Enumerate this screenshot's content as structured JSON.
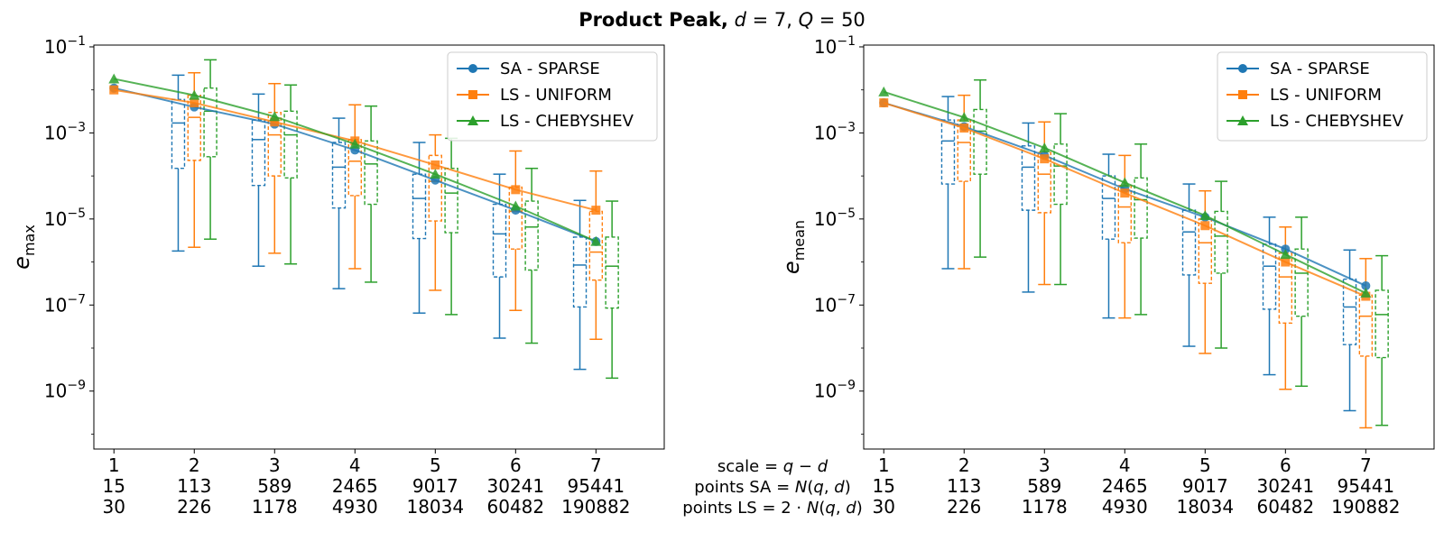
{
  "figure": {
    "title_bold": "Product Peak,",
    "title_rest_parts": [
      {
        "t": " ",
        "i": false
      },
      {
        "t": "d",
        "i": true
      },
      {
        "t": " = 7, ",
        "i": false
      },
      {
        "t": "Q",
        "i": true
      },
      {
        "t": " = 50",
        "i": false
      }
    ],
    "center_labels": [
      [
        {
          "t": "scale = ",
          "i": false
        },
        {
          "t": "q",
          "i": true
        },
        {
          "t": " − ",
          "i": false
        },
        {
          "t": "d",
          "i": true
        }
      ],
      [
        {
          "t": "points SA = ",
          "i": false
        },
        {
          "t": "N",
          "i": true
        },
        {
          "t": "(",
          "i": false
        },
        {
          "t": "q",
          "i": true
        },
        {
          "t": ", ",
          "i": false
        },
        {
          "t": "d",
          "i": true
        },
        {
          "t": ")",
          "i": false
        }
      ],
      [
        {
          "t": "points LS = 2 · ",
          "i": false
        },
        {
          "t": "N",
          "i": true
        },
        {
          "t": "(",
          "i": false
        },
        {
          "t": "q",
          "i": true
        },
        {
          "t": ", ",
          "i": false
        },
        {
          "t": "d",
          "i": true
        },
        {
          "t": ")",
          "i": false
        }
      ]
    ],
    "colors": {
      "SA - SPARSE": "#1f77b4",
      "LS - UNIFORM": "#ff7f0e",
      "LS - CHEBYSHEV": "#2ca02c"
    }
  },
  "chart_data": [
    {
      "type": "line",
      "ylabel_base": "e",
      "ylabel_sub": "max",
      "yscale": "log",
      "ylim": [
        5e-11,
        0.1
      ],
      "ytick_exponents": [
        -1,
        -3,
        -5,
        -7,
        -9
      ],
      "x": [
        1,
        2,
        3,
        4,
        5,
        6,
        7
      ],
      "x_tick_rows": [
        [
          "1",
          "2",
          "3",
          "4",
          "5",
          "6",
          "7"
        ],
        [
          "15",
          "113",
          "589",
          "2465",
          "9017",
          "30241",
          "95441"
        ],
        [
          "30",
          "226",
          "1178",
          "4930",
          "18034",
          "60482",
          "190882"
        ]
      ],
      "legend": "upper right",
      "series": [
        {
          "name": "SA - SPARSE",
          "marker": "circle",
          "color": "#1f77b4",
          "values": [
            0.011,
            0.004,
            0.0016,
            0.0004,
            8e-05,
            1.6e-05,
            3e-06
          ],
          "box_offset": -0.2,
          "boxes": [
            null,
            {
              "wlo": 1.8e-06,
              "q1": 0.00015,
              "med": 0.0017,
              "q3": 0.006,
              "whi": 0.022
            },
            {
              "wlo": 8e-07,
              "q1": 6e-05,
              "med": 0.0007,
              "q3": 0.002,
              "whi": 0.008
            },
            {
              "wlo": 2.4e-07,
              "q1": 1.8e-05,
              "med": 0.00016,
              "q3": 0.0006,
              "whi": 0.0022
            },
            {
              "wlo": 6.5e-08,
              "q1": 3.5e-06,
              "med": 3e-05,
              "q3": 0.00011,
              "whi": 0.0006
            },
            {
              "wlo": 1.7e-08,
              "q1": 4.5e-07,
              "med": 4.5e-06,
              "q3": 2.2e-05,
              "whi": 0.00011
            },
            {
              "wlo": 3.2e-09,
              "q1": 9e-08,
              "med": 8.5e-07,
              "q3": 3.8e-06,
              "whi": 2.7e-05
            }
          ]
        },
        {
          "name": "LS - UNIFORM",
          "marker": "square",
          "color": "#ff7f0e",
          "values": [
            0.01,
            0.005,
            0.0018,
            0.00065,
            0.00018,
            4.8e-05,
            1.6e-05
          ],
          "box_offset": 0,
          "boxes": [
            null,
            {
              "wlo": 2.2e-06,
              "q1": 0.00023,
              "med": 0.0023,
              "q3": 0.0075,
              "whi": 0.025
            },
            {
              "wlo": 1.6e-06,
              "q1": 0.0001,
              "med": 0.0009,
              "q3": 0.003,
              "whi": 0.014
            },
            {
              "wlo": 7e-07,
              "q1": 3.5e-05,
              "med": 0.00022,
              "q3": 0.0007,
              "whi": 0.0045
            },
            {
              "wlo": 2.2e-07,
              "q1": 9e-06,
              "med": 7.5e-05,
              "q3": 0.0003,
              "whi": 0.0009
            },
            {
              "wlo": 7.5e-08,
              "q1": 2e-06,
              "med": 1.5e-05,
              "q3": 5.5e-05,
              "whi": 0.00038
            },
            {
              "wlo": 1.6e-08,
              "q1": 3.8e-07,
              "med": 1.7e-06,
              "q3": 1.5e-05,
              "whi": 0.00013
            }
          ]
        },
        {
          "name": "LS - CHEBYSHEV",
          "marker": "triangle",
          "color": "#2ca02c",
          "values": [
            0.018,
            0.0075,
            0.0024,
            0.00055,
            0.00011,
            2e-05,
            3e-06
          ],
          "box_offset": 0.2,
          "boxes": [
            null,
            {
              "wlo": 3.4e-06,
              "q1": 0.00028,
              "med": 0.0032,
              "q3": 0.011,
              "whi": 0.05
            },
            {
              "wlo": 9e-07,
              "q1": 9e-05,
              "med": 0.0009,
              "q3": 0.0032,
              "whi": 0.013
            },
            {
              "wlo": 3.4e-07,
              "q1": 2.2e-05,
              "med": 0.00019,
              "q3": 0.00065,
              "whi": 0.0042
            },
            {
              "wlo": 6e-08,
              "q1": 4.8e-06,
              "med": 4e-05,
              "q3": 0.00015,
              "whi": 0.00075
            },
            {
              "wlo": 1.3e-08,
              "q1": 6.5e-07,
              "med": 6.5e-06,
              "q3": 2.6e-05,
              "whi": 0.00015
            },
            {
              "wlo": 2e-09,
              "q1": 8.5e-08,
              "med": 8e-07,
              "q3": 3.8e-06,
              "whi": 2.6e-05
            }
          ]
        }
      ]
    },
    {
      "type": "line",
      "ylabel_base": "e",
      "ylabel_sub": "mean",
      "yscale": "log",
      "ylim": [
        5e-11,
        0.1
      ],
      "ytick_exponents": [
        -1,
        -3,
        -5,
        -7,
        -9
      ],
      "x": [
        1,
        2,
        3,
        4,
        5,
        6,
        7
      ],
      "x_tick_rows": [
        [
          "1",
          "2",
          "3",
          "4",
          "5",
          "6",
          "7"
        ],
        [
          "15",
          "113",
          "589",
          "2465",
          "9017",
          "30241",
          "95441"
        ],
        [
          "30",
          "226",
          "1178",
          "4930",
          "18034",
          "60482",
          "190882"
        ]
      ],
      "legend": "upper right",
      "series": [
        {
          "name": "SA - SPARSE",
          "marker": "circle",
          "color": "#1f77b4",
          "values": [
            0.005,
            0.0014,
            0.0003,
            5e-05,
            1.1e-05,
            2e-06,
            2.8e-07
          ],
          "box_offset": -0.2,
          "boxes": [
            null,
            {
              "wlo": 7e-07,
              "q1": 6.5e-05,
              "med": 0.00065,
              "q3": 0.002,
              "whi": 0.007
            },
            {
              "wlo": 2e-07,
              "q1": 1.6e-05,
              "med": 0.00016,
              "q3": 0.0005,
              "whi": 0.0017
            },
            {
              "wlo": 5e-08,
              "q1": 3.4e-06,
              "med": 3e-05,
              "q3": 0.0001,
              "whi": 0.00032
            },
            {
              "wlo": 1.1e-08,
              "q1": 5e-07,
              "med": 5e-06,
              "q3": 1.6e-05,
              "whi": 6.5e-05
            },
            {
              "wlo": 2.4e-09,
              "q1": 8e-08,
              "med": 8e-07,
              "q3": 2.6e-06,
              "whi": 1.1e-05
            },
            {
              "wlo": 3.5e-10,
              "q1": 1.2e-08,
              "med": 9e-08,
              "q3": 4e-07,
              "whi": 1.9e-06
            }
          ]
        },
        {
          "name": "LS - UNIFORM",
          "marker": "square",
          "color": "#ff7f0e",
          "values": [
            0.005,
            0.0013,
            0.00025,
            4e-05,
            7e-06,
            1e-06,
            1.6e-07
          ],
          "box_offset": 0,
          "boxes": [
            null,
            {
              "wlo": 7e-07,
              "q1": 7.5e-05,
              "med": 0.0006,
              "q3": 0.002,
              "whi": 0.0075
            },
            {
              "wlo": 3e-07,
              "q1": 1.4e-05,
              "med": 0.00011,
              "q3": 0.00035,
              "whi": 0.0018
            },
            {
              "wlo": 5e-08,
              "q1": 2.8e-06,
              "med": 1.9e-05,
              "q3": 6e-05,
              "whi": 0.0003
            },
            {
              "wlo": 7.5e-09,
              "q1": 3.2e-07,
              "med": 2.8e-06,
              "q3": 1e-05,
              "whi": 4.5e-05
            },
            {
              "wlo": 1.1e-09,
              "q1": 3.8e-08,
              "med": 4.5e-07,
              "q3": 1.6e-06,
              "whi": 6.5e-06
            },
            {
              "wlo": 1.4e-10,
              "q1": 6.5e-09,
              "med": 5.5e-08,
              "q3": 1.7e-07,
              "whi": 1.2e-06
            }
          ]
        },
        {
          "name": "LS - CHEBYSHEV",
          "marker": "triangle",
          "color": "#2ca02c",
          "values": [
            0.009,
            0.0023,
            0.00045,
            7e-05,
            1.2e-05,
            1.5e-06,
            1.9e-07
          ],
          "box_offset": 0.2,
          "boxes": [
            null,
            {
              "wlo": 1.3e-06,
              "q1": 0.00011,
              "med": 0.0011,
              "q3": 0.0035,
              "whi": 0.017
            },
            {
              "wlo": 3e-07,
              "q1": 2.2e-05,
              "med": 0.00017,
              "q3": 0.00055,
              "whi": 0.0028
            },
            {
              "wlo": 6e-08,
              "q1": 3.6e-06,
              "med": 2.8e-05,
              "q3": 9e-05,
              "whi": 0.00055
            },
            {
              "wlo": 1e-08,
              "q1": 5.5e-07,
              "med": 4e-06,
              "q3": 1.5e-05,
              "whi": 7.5e-05
            },
            {
              "wlo": 1.3e-09,
              "q1": 5.5e-08,
              "med": 5.5e-07,
              "q3": 2e-06,
              "whi": 1.1e-05
            },
            {
              "wlo": 1.6e-10,
              "q1": 6e-09,
              "med": 6e-08,
              "q3": 2.2e-07,
              "whi": 1.4e-06
            }
          ]
        }
      ]
    }
  ]
}
